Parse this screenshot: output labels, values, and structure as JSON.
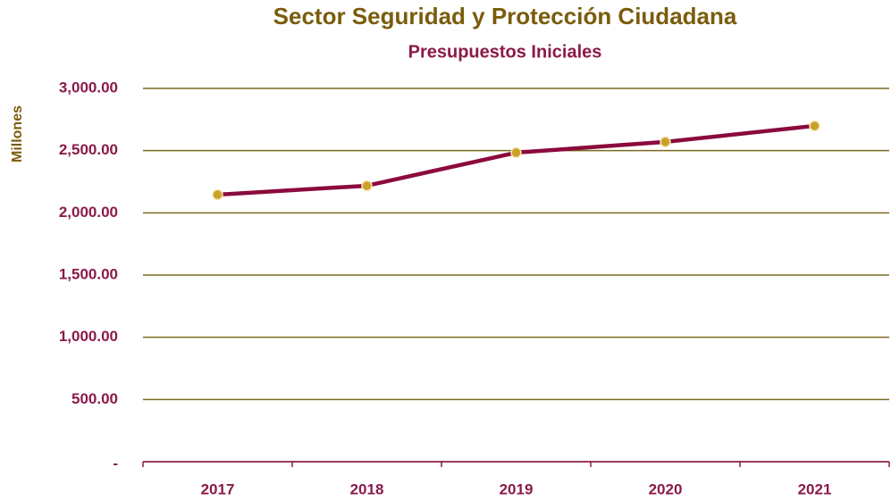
{
  "chart_data": {
    "type": "line",
    "title": "Sector Seguridad y Protección Ciudadana",
    "subtitle": "Presupuestos Iniciales",
    "y_axis_label": "Millones",
    "categories": [
      "2017",
      "2018",
      "2019",
      "2020",
      "2021"
    ],
    "series": [
      {
        "name": "Presupuesto",
        "color": "#8b0a3c",
        "marker_color": "#c9a227",
        "values": [
          2146,
          2218,
          2484,
          2570,
          2699
        ]
      }
    ],
    "ylim": [
      0,
      3000
    ],
    "yticks": [
      {
        "value": 0,
        "label": "-"
      },
      {
        "value": 500,
        "label": "500.00"
      },
      {
        "value": 1000,
        "label": "1,000.00"
      },
      {
        "value": 1500,
        "label": "1,500.00"
      },
      {
        "value": 2000,
        "label": "2,000.00"
      },
      {
        "value": 2500,
        "label": "2,500.00"
      },
      {
        "value": 3000,
        "label": "3,000.00"
      }
    ],
    "grid": true
  }
}
